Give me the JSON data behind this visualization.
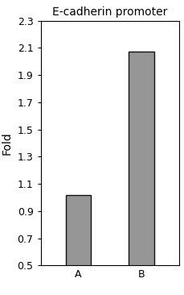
{
  "title": "E-cadherin promoter",
  "categories": [
    "A",
    "B"
  ],
  "values": [
    1.02,
    2.07
  ],
  "bar_color": "#969696",
  "bar_edgecolor": "#111111",
  "ylabel": "Fold",
  "ylim": [
    0.5,
    2.3
  ],
  "yticks": [
    0.5,
    0.7,
    0.9,
    1.1,
    1.3,
    1.5,
    1.7,
    1.9,
    2.1,
    2.3
  ],
  "title_fontsize": 10,
  "label_fontsize": 10,
  "tick_fontsize": 9,
  "bar_width": 0.4,
  "background_color": "#ffffff"
}
